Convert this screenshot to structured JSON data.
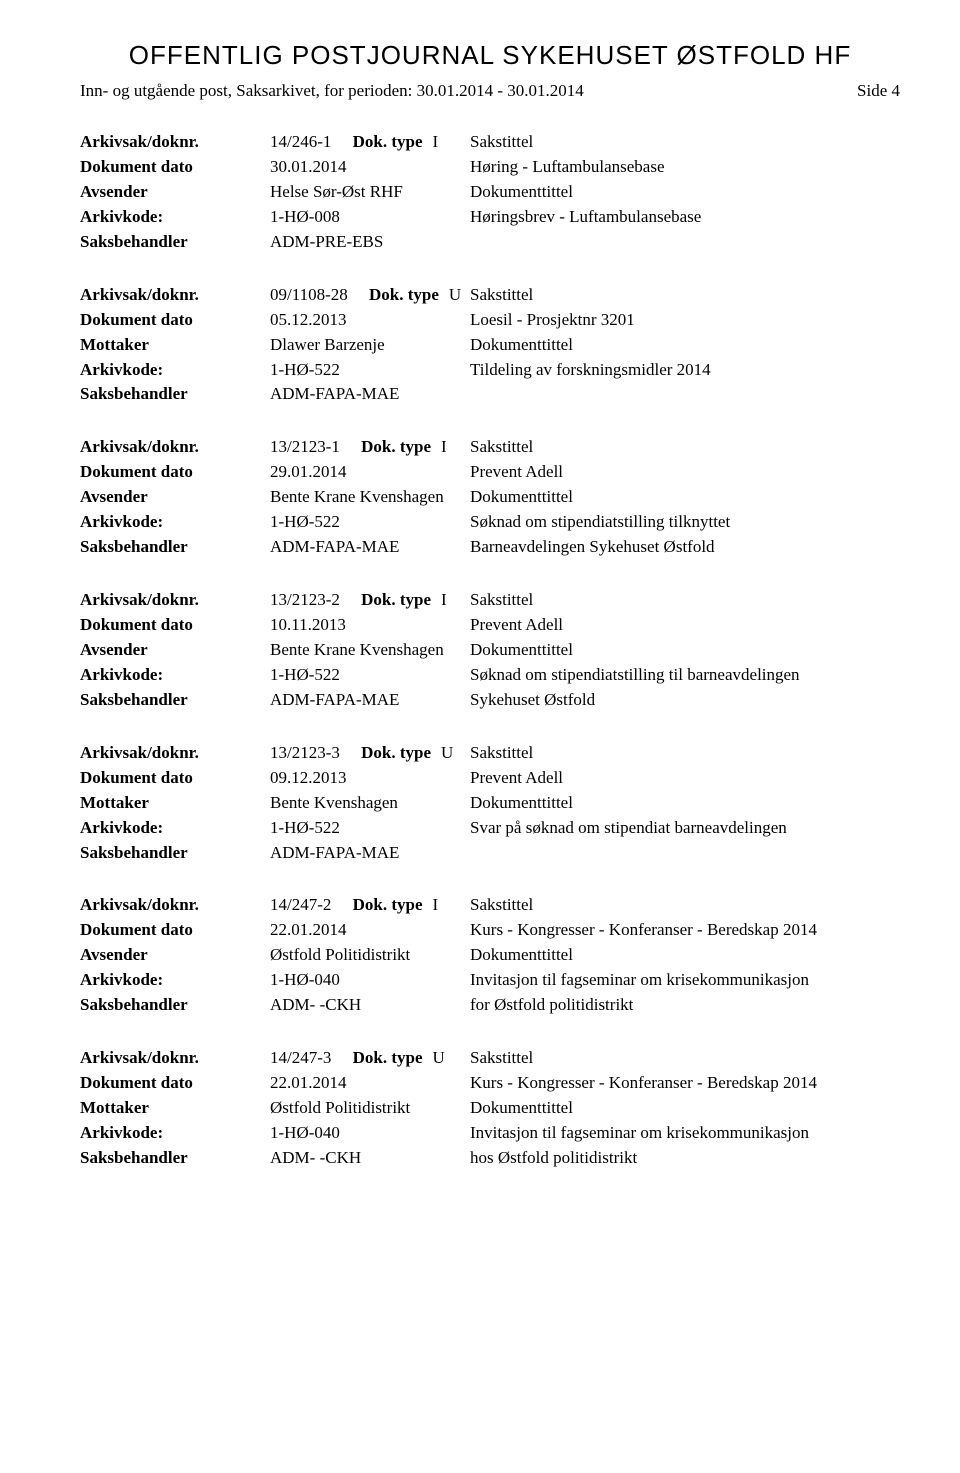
{
  "header": {
    "title": "OFFENTLIG POSTJOURNAL SYKEHUSET ØSTFOLD HF",
    "subtitle": "Inn- og utgående post, Saksarkivet, for perioden: 30.01.2014 - 30.01.2014",
    "page_label": "Side 4"
  },
  "labels": {
    "arkivsak": "Arkivsak/doknr.",
    "doktype": "Dok. type",
    "sakstittel": "Sakstittel",
    "dokumentdato": "Dokument dato",
    "avsender": "Avsender",
    "mottaker": "Mottaker",
    "dokumenttittel": "Dokumenttittel",
    "arkivkode": "Arkivkode:",
    "saksbehandler": "Saksbehandler"
  },
  "records": [
    {
      "arkivsak": "14/246-1",
      "doktype": "I",
      "dato": "30.01.2014",
      "sakstittel": "Høring - Luftambulansebase",
      "party_label": "Avsender",
      "party": "Helse Sør-Øst RHF",
      "arkivkode": "1-HØ-008",
      "dokumenttittel_lines": [
        "Høringsbrev - Luftambulansebase"
      ],
      "saksbehandler": "ADM-PRE-EBS"
    },
    {
      "arkivsak": "09/1108-28",
      "doktype": "U",
      "dato": "05.12.2013",
      "sakstittel": "Loesil - Prosjektnr 3201",
      "party_label": "Mottaker",
      "party": "Dlawer Barzenje",
      "arkivkode": "1-HØ-522",
      "dokumenttittel_lines": [
        "Tildeling av forskningsmidler 2014"
      ],
      "saksbehandler": "ADM-FAPA-MAE"
    },
    {
      "arkivsak": "13/2123-1",
      "doktype": "I",
      "dato": "29.01.2014",
      "sakstittel": "Prevent Adell",
      "party_label": "Avsender",
      "party": "Bente Krane Kvenshagen",
      "arkivkode": "1-HØ-522",
      "dokumenttittel_lines": [
        "Søknad om stipendiatstilling tilknyttet",
        "Barneavdelingen Sykehuset Østfold"
      ],
      "saksbehandler": "ADM-FAPA-MAE"
    },
    {
      "arkivsak": "13/2123-2",
      "doktype": "I",
      "dato": "10.11.2013",
      "sakstittel": "Prevent Adell",
      "party_label": "Avsender",
      "party": "Bente Krane Kvenshagen",
      "arkivkode": "1-HØ-522",
      "dokumenttittel_lines": [
        "Søknad om stipendiatstilling til barneavdelingen",
        "Sykehuset Østfold"
      ],
      "saksbehandler": "ADM-FAPA-MAE"
    },
    {
      "arkivsak": "13/2123-3",
      "doktype": "U",
      "dato": "09.12.2013",
      "sakstittel": "Prevent Adell",
      "party_label": "Mottaker",
      "party": "Bente Kvenshagen",
      "arkivkode": "1-HØ-522",
      "dokumenttittel_lines": [
        "Svar på søknad om stipendiat barneavdelingen"
      ],
      "saksbehandler": "ADM-FAPA-MAE"
    },
    {
      "arkivsak": "14/247-2",
      "doktype": "I",
      "dato": "22.01.2014",
      "sakstittel": "Kurs - Kongresser - Konferanser - Beredskap 2014",
      "party_label": "Avsender",
      "party": "Østfold Politidistrikt",
      "arkivkode": "1-HØ-040",
      "dokumenttittel_lines": [
        "Invitasjon til fagseminar om krisekommunikasjon",
        "for Østfold politidistrikt"
      ],
      "saksbehandler": "ADM- -CKH"
    },
    {
      "arkivsak": "14/247-3",
      "doktype": "U",
      "dato": "22.01.2014",
      "sakstittel": "Kurs - Kongresser - Konferanser - Beredskap 2014",
      "party_label": "Mottaker",
      "party": "Østfold Politidistrikt",
      "arkivkode": "1-HØ-040",
      "dokumenttittel_lines": [
        "Invitasjon til fagseminar om krisekommunikasjon",
        "hos Østfold politidistrikt"
      ],
      "saksbehandler": "ADM- -CKH"
    }
  ]
}
